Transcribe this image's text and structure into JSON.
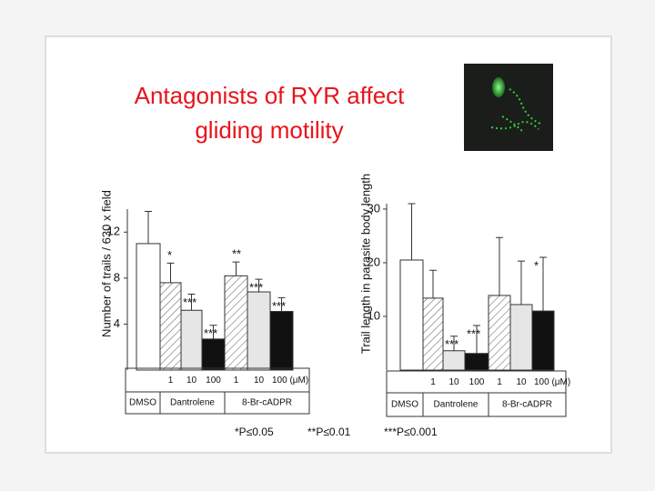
{
  "slide": {
    "title_lines": [
      "Antagonists of RYR affect",
      "gliding motility"
    ],
    "footnote": [
      "*P≤0.05",
      "**P≤0.01",
      "***P≤0.001"
    ]
  },
  "chart_data": [
    {
      "type": "bar",
      "ylabel": "Number of trails / 630 x field",
      "categories": [
        null,
        "1",
        "10",
        "100",
        "1",
        "10",
        "100"
      ],
      "dose_unit": "(μM)",
      "groups": [
        "DMSO",
        "Dantrolene",
        "8-Br-cADPR"
      ],
      "values": [
        11.0,
        7.6,
        5.2,
        2.7,
        8.2,
        6.8,
        5.1
      ],
      "errors": [
        2.8,
        1.7,
        1.4,
        1.2,
        1.2,
        1.1,
        1.2
      ],
      "annotations": [
        null,
        "*",
        "***",
        "***",
        "**",
        "***",
        "***"
      ],
      "fills": [
        "#ffffff",
        "hatch",
        "#e6e6e6",
        "#111111",
        "hatch",
        "#e6e6e6",
        "#111111"
      ],
      "ylim": [
        0,
        14
      ],
      "yticks": [
        4,
        8,
        12
      ]
    },
    {
      "type": "bar",
      "ylabel": "Trail length in parasite body length",
      "categories": [
        null,
        "1",
        "10",
        "100",
        "1",
        "10",
        "100"
      ],
      "dose_unit": "(μM)",
      "groups": [
        "DMSO",
        "Dantrolene",
        "8-Br-cADPR"
      ],
      "values": [
        20.5,
        13.4,
        3.6,
        3.1,
        13.9,
        12.2,
        11.0
      ],
      "errors": [
        10.5,
        5.2,
        2.7,
        5.2,
        10.8,
        8.1,
        10.0
      ],
      "annotations": [
        null,
        null,
        "***",
        "***",
        null,
        null,
        "*"
      ],
      "fills": [
        "#ffffff",
        "hatch",
        "#e6e6e6",
        "#111111",
        "hatch",
        "#e6e6e6",
        "#111111"
      ],
      "ylim": [
        0,
        31
      ],
      "yticks": [
        10,
        20,
        30
      ]
    }
  ]
}
